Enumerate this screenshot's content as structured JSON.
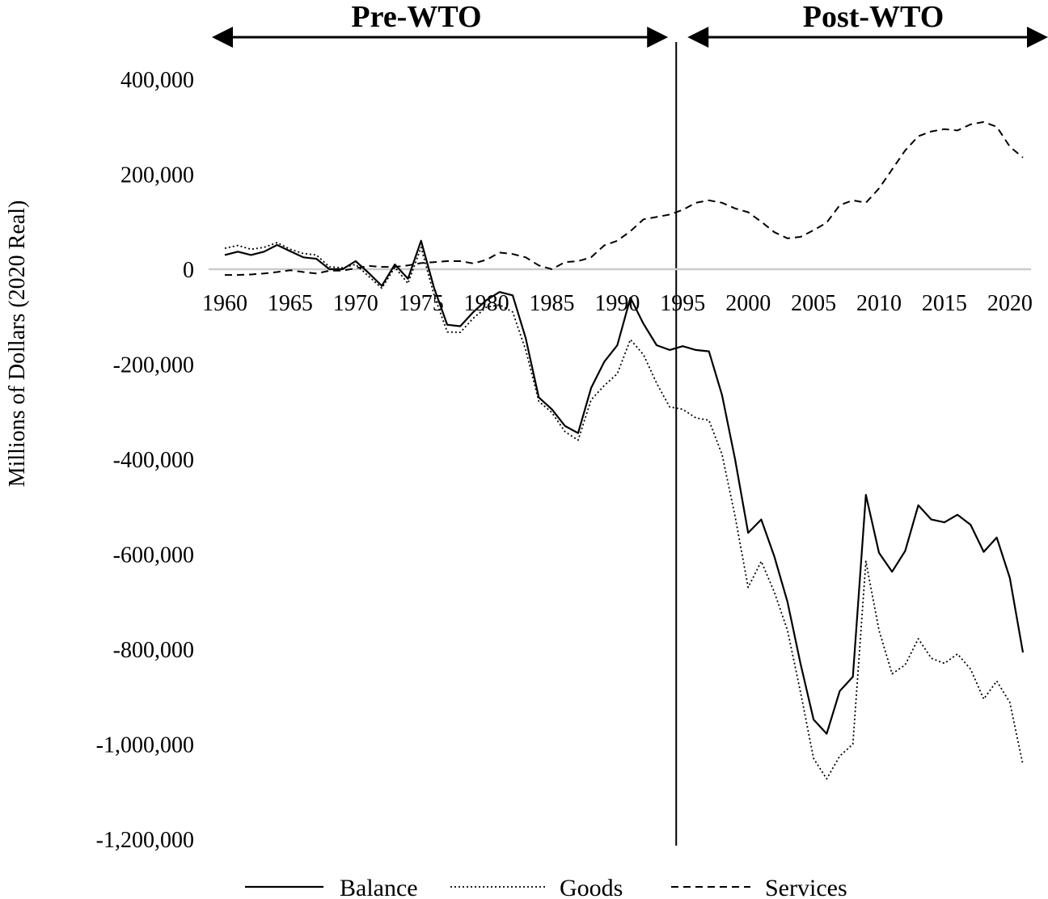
{
  "chart_data": {
    "type": "line",
    "ylabel": "Millions of Dollars  (2020 Real)",
    "ylim": [
      -1200000,
      400000
    ],
    "y_ticks": [
      "400,000",
      "200,000",
      "0",
      "-200,000",
      "-400,000",
      "-600,000",
      "-800,000",
      "-1,000,000",
      "-1,200,000"
    ],
    "y_tick_values": [
      400000,
      200000,
      0,
      -200000,
      -400000,
      -600000,
      -800000,
      -1000000,
      -1200000
    ],
    "x_ticks": [
      "1960",
      "1965",
      "1970",
      "1975",
      "1980",
      "1985",
      "1990",
      "1995",
      "2000",
      "2005",
      "2010",
      "2015",
      "2020"
    ],
    "x_tick_values": [
      1960,
      1965,
      1970,
      1975,
      1980,
      1985,
      1990,
      1995,
      2000,
      2005,
      2010,
      2015,
      2020
    ],
    "xlim": [
      1960,
      2021
    ],
    "zero_line_color": "#cccccc",
    "divider_year": 1994.5,
    "eras": [
      {
        "label": "Pre-WTO",
        "from": 1960,
        "to": 1994.5
      },
      {
        "label": "Post-WTO",
        "from": 1994.5,
        "to": 2021
      }
    ],
    "x": [
      1960,
      1961,
      1962,
      1963,
      1964,
      1965,
      1966,
      1967,
      1968,
      1969,
      1970,
      1971,
      1972,
      1973,
      1974,
      1975,
      1976,
      1977,
      1978,
      1979,
      1980,
      1981,
      1982,
      1983,
      1984,
      1985,
      1986,
      1987,
      1988,
      1989,
      1990,
      1991,
      1992,
      1993,
      1994,
      1995,
      1996,
      1997,
      1998,
      1999,
      2000,
      2001,
      2002,
      2003,
      2004,
      2005,
      2006,
      2007,
      2008,
      2009,
      2010,
      2011,
      2012,
      2013,
      2014,
      2015,
      2016,
      2017,
      2018,
      2019,
      2020,
      2021
    ],
    "series": [
      {
        "name": "Balance",
        "style": "solid",
        "values": [
          30000,
          37000,
          30000,
          37000,
          51000,
          38000,
          25000,
          22000,
          0,
          0,
          17000,
          -8000,
          -35000,
          10000,
          -20000,
          60000,
          -40000,
          -117000,
          -120000,
          -90000,
          -65000,
          -48000,
          -55000,
          -145000,
          -270000,
          -295000,
          -330000,
          -345000,
          -250000,
          -195000,
          -160000,
          -60000,
          -115000,
          -160000,
          -170000,
          -162000,
          -170000,
          -173000,
          -265000,
          -400000,
          -555000,
          -527000,
          -605000,
          -700000,
          -830000,
          -948000,
          -978000,
          -888000,
          -858000,
          -475000,
          -597000,
          -637000,
          -593000,
          -497000,
          -527000,
          -533000,
          -517000,
          -538000,
          -595000,
          -565000,
          -650000,
          -807000
        ]
      },
      {
        "name": "Goods",
        "style": "dotted",
        "values": [
          44000,
          50000,
          42000,
          46000,
          56000,
          42000,
          33000,
          30000,
          5000,
          3000,
          10000,
          -15000,
          -40000,
          4000,
          -30000,
          46000,
          -55000,
          -132000,
          -133000,
          -103000,
          -80000,
          -75000,
          -90000,
          -170000,
          -278000,
          -302000,
          -342000,
          -360000,
          -275000,
          -245000,
          -220000,
          -148000,
          -180000,
          -240000,
          -290000,
          -295000,
          -313000,
          -318000,
          -390000,
          -520000,
          -670000,
          -615000,
          -680000,
          -760000,
          -890000,
          -1030000,
          -1073000,
          -1025000,
          -1000000,
          -615000,
          -760000,
          -852000,
          -833000,
          -778000,
          -819000,
          -830000,
          -810000,
          -842000,
          -905000,
          -867000,
          -912000,
          -1043000
        ]
      },
      {
        "name": "Services",
        "style": "dashed",
        "values": [
          -12000,
          -12000,
          -11000,
          -9000,
          -6000,
          -2000,
          -6000,
          -9000,
          -3000,
          -3000,
          2000,
          7000,
          5000,
          5000,
          8000,
          13000,
          15000,
          17000,
          17000,
          12000,
          20000,
          35000,
          32000,
          25000,
          8000,
          0,
          15000,
          17000,
          25000,
          50000,
          60000,
          80000,
          105000,
          110000,
          115000,
          125000,
          140000,
          145000,
          140000,
          128000,
          120000,
          100000,
          78000,
          65000,
          68000,
          82000,
          98000,
          135000,
          145000,
          140000,
          170000,
          210000,
          250000,
          280000,
          290000,
          295000,
          292000,
          305000,
          310000,
          300000,
          258000,
          235000
        ]
      }
    ],
    "legend": [
      {
        "label": "Balance",
        "style": "solid"
      },
      {
        "label": "Goods",
        "style": "dotted"
      },
      {
        "label": "Services",
        "style": "dashed"
      }
    ],
    "legend_position": "bottom"
  }
}
